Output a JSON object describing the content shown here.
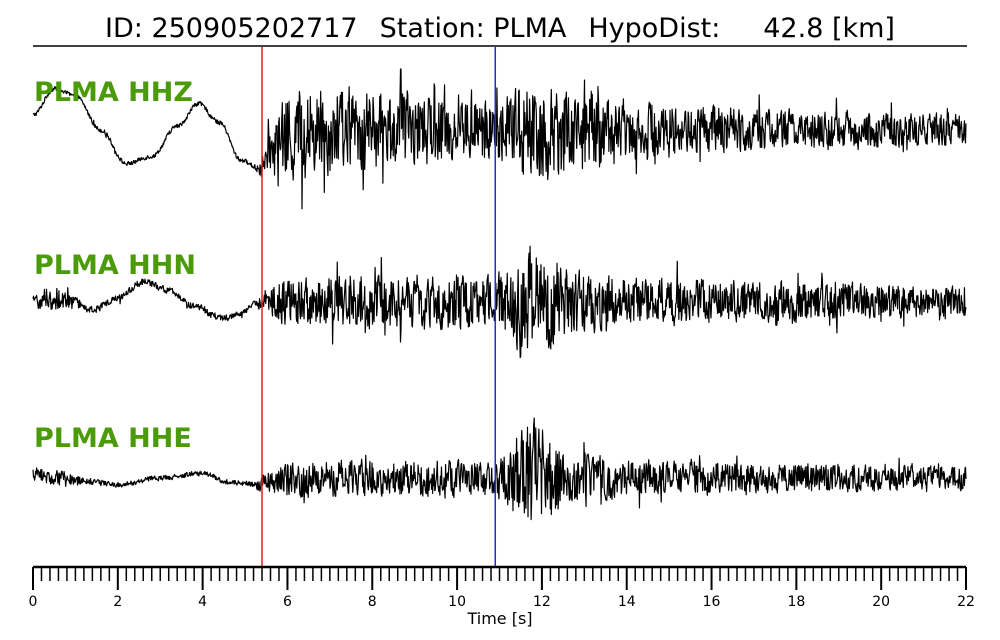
{
  "header": {
    "event_id_text": "ID: 250905202717",
    "station_text": "Station: PLMA",
    "hypodist_text": "HypoDist:     42.8 [km]"
  },
  "colors": {
    "label": "#4a9a0a",
    "trace": "#000000",
    "p_pick": "#e0211d",
    "s_pick": "#2a2ad0"
  },
  "chart_data": {
    "type": "line",
    "title": "ID: 250905202717   Station: PLMA   HypoDist:     42.8 [km]",
    "xlabel": "Time [s]",
    "ylabel": "",
    "xlim": [
      0,
      22
    ],
    "x_major_ticks": [
      0,
      2,
      4,
      6,
      8,
      10,
      12,
      14,
      16,
      18,
      20,
      22
    ],
    "x_minor_tick_step": 0.2,
    "grid": false,
    "legend": "none",
    "p_pick_time": 5.4,
    "s_pick_time": 10.9,
    "series": [
      {
        "name": "PLMA HHZ",
        "channel": "HHZ",
        "envelope_knots": {
          "t": [
            0,
            5.2,
            5.4,
            6.0,
            10.9,
            11.8,
            12.8,
            14,
            18,
            22
          ],
          "amp": [
            0.04,
            0.04,
            0.2,
            0.85,
            0.55,
            1.0,
            0.8,
            0.55,
            0.35,
            0.3
          ]
        },
        "long_period": {
          "t": [
            0,
            0.5,
            1.0,
            1.6,
            2.2,
            2.8,
            3.4,
            3.9,
            4.4,
            4.9,
            5.3
          ],
          "v": [
            0.2,
            0.55,
            0.45,
            0.0,
            -0.45,
            -0.35,
            0.05,
            0.35,
            0.1,
            -0.4,
            -0.5
          ]
        }
      },
      {
        "name": "PLMA HHN",
        "channel": "HHN",
        "envelope_knots": {
          "t": [
            0,
            0.6,
            1.2,
            5.2,
            5.4,
            6.0,
            10.9,
            11.6,
            12.6,
            14,
            18,
            22
          ],
          "amp": [
            0.1,
            0.2,
            0.06,
            0.05,
            0.15,
            0.45,
            0.45,
            1.0,
            0.6,
            0.4,
            0.35,
            0.25
          ]
        },
        "long_period": {
          "t": [
            0,
            0.6,
            1.4,
            2.0,
            2.6,
            3.2,
            3.8,
            4.4,
            4.9,
            5.3
          ],
          "v": [
            0.0,
            0.05,
            -0.1,
            0.05,
            0.25,
            0.15,
            -0.05,
            -0.2,
            -0.15,
            0.0
          ]
        }
      },
      {
        "name": "PLMA HHE",
        "channel": "HHE",
        "envelope_knots": {
          "t": [
            0,
            0.6,
            1.4,
            5.2,
            5.4,
            6.0,
            10.9,
            11.8,
            12.6,
            14,
            18,
            22
          ],
          "amp": [
            0.1,
            0.12,
            0.04,
            0.04,
            0.15,
            0.3,
            0.3,
            1.0,
            0.45,
            0.3,
            0.25,
            0.2
          ]
        },
        "long_period": {
          "t": [
            0,
            0.6,
            1.4,
            2.0,
            3.0,
            4.0,
            4.6,
            5.3
          ],
          "v": [
            0.05,
            0.0,
            -0.05,
            -0.08,
            0.0,
            0.06,
            -0.05,
            -0.08
          ]
        }
      }
    ]
  }
}
